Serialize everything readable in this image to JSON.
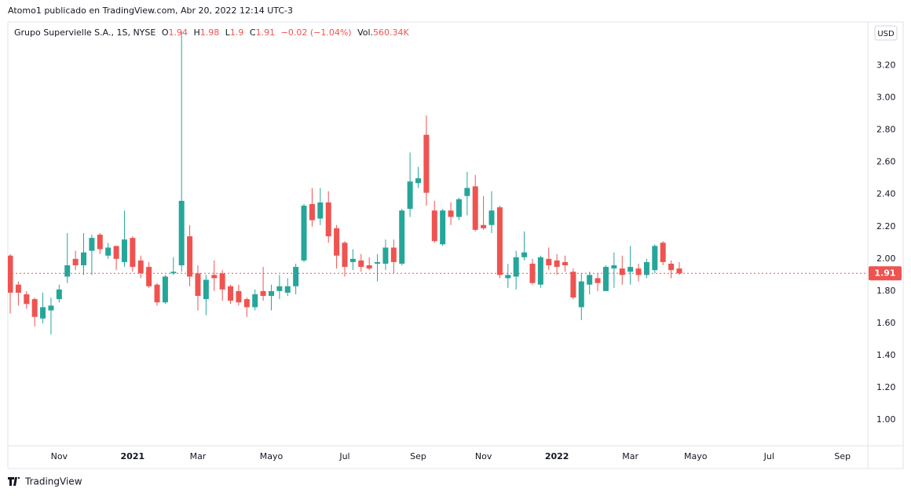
{
  "header": {
    "title": "Atomo1 publicado en TradingView.com, Abr 20, 2022 12:14 UTC-3"
  },
  "chart_data": {
    "type": "candlestick",
    "symbol": "Grupo Supervielle S.A., 1S, NYSE",
    "legend_labels": {
      "open": "O",
      "high": "H",
      "low": "L",
      "close": "C",
      "volume": "Vol."
    },
    "change": "−0.02 (−1.04%)",
    "volume": "560.34K",
    "currency": "USD",
    "categories": [
      null,
      null,
      null,
      null,
      null,
      null,
      "Nov",
      null,
      null,
      null,
      null,
      null,
      null,
      null,
      null,
      "2021",
      null,
      null,
      null,
      null,
      null,
      null,
      null,
      "Mar",
      null,
      null,
      null,
      null,
      null,
      null,
      null,
      null,
      "Mayo",
      null,
      null,
      null,
      null,
      null,
      null,
      null,
      null,
      "Jul",
      null,
      null,
      null,
      null,
      null,
      null,
      null,
      null,
      "Sep",
      null,
      null,
      null,
      null,
      null,
      null,
      null,
      "Nov",
      null,
      null,
      null,
      null,
      null,
      null,
      null,
      null,
      "2022",
      null,
      null,
      null,
      null,
      null,
      null,
      null,
      null,
      "Mar",
      null,
      null,
      null,
      null,
      null,
      null,
      null,
      "Mayo",
      null,
      null,
      null,
      null,
      null,
      null,
      null,
      null,
      "Jul",
      null,
      null,
      null,
      null,
      null,
      null,
      null,
      null,
      "Sep",
      null,
      null
    ],
    "open": [
      2.02,
      1.84,
      1.78,
      1.75,
      1.63,
      1.68,
      1.75,
      1.89,
      2.0,
      1.96,
      2.05,
      2.15,
      2.02,
      2.08,
      1.98,
      2.13,
      1.99,
      1.95,
      1.84,
      1.73,
      1.91,
      1.96,
      2.14,
      1.91,
      1.75,
      1.9,
      1.91,
      1.83,
      1.8,
      1.75,
      1.7,
      1.8,
      1.77,
      1.8,
      1.79,
      1.83,
      1.99,
      2.34,
      2.25,
      2.35,
      2.19,
      2.1,
      1.98,
      1.99,
      1.96,
      1.97,
      1.97,
      2.07,
      1.97,
      2.31,
      2.47,
      2.77,
      2.3,
      2.09,
      2.3,
      2.26,
      2.39,
      2.45,
      2.21,
      2.21,
      2.32,
      1.88,
      1.89,
      2.01,
      1.97,
      1.84,
      2.0,
      1.99,
      1.98,
      1.92,
      1.7,
      1.84,
      1.88,
      1.8,
      1.94,
      1.94,
      1.92,
      1.94,
      1.9,
      1.93,
      2.1,
      1.97,
      1.94,
      null,
      null,
      null,
      null,
      null,
      null,
      null,
      null,
      null,
      null,
      null,
      null,
      null,
      null,
      null,
      null,
      null,
      null,
      null,
      null,
      null,
      null
    ],
    "high": [
      2.03,
      1.86,
      1.8,
      1.76,
      1.79,
      1.76,
      1.84,
      2.16,
      2.05,
      2.16,
      2.15,
      2.16,
      2.1,
      2.08,
      2.3,
      2.14,
      2.02,
      1.98,
      1.85,
      1.9,
      2.01,
      3.41,
      2.21,
      1.96,
      1.9,
      1.99,
      1.93,
      1.84,
      1.84,
      1.76,
      1.81,
      1.95,
      1.84,
      1.9,
      1.88,
      1.97,
      2.34,
      2.44,
      2.44,
      2.42,
      2.21,
      2.11,
      2.06,
      2.03,
      2.01,
      2.03,
      2.12,
      2.12,
      2.31,
      2.66,
      2.57,
      2.89,
      2.36,
      2.31,
      2.35,
      2.38,
      2.54,
      2.52,
      2.39,
      2.42,
      2.33,
      1.97,
      2.05,
      2.17,
      2.0,
      2.02,
      2.07,
      2.03,
      2.02,
      1.94,
      1.91,
      1.92,
      1.91,
      1.96,
      2.04,
      2.02,
      2.08,
      1.97,
      2.0,
      2.09,
      2.11,
      1.99,
      1.98,
      null,
      null,
      null,
      null,
      null,
      null,
      null,
      null,
      null,
      null,
      null,
      null,
      null,
      null,
      null,
      null,
      null,
      null,
      null,
      null,
      null,
      null
    ],
    "low": [
      1.66,
      1.71,
      1.69,
      1.58,
      1.6,
      1.53,
      1.73,
      1.85,
      1.93,
      1.9,
      1.9,
      2.03,
      2.0,
      1.93,
      1.95,
      1.92,
      1.88,
      1.82,
      1.71,
      1.72,
      1.9,
      1.92,
      1.83,
      1.68,
      1.65,
      1.8,
      1.74,
      1.72,
      1.71,
      1.64,
      1.68,
      1.74,
      1.68,
      1.75,
      1.77,
      1.78,
      1.98,
      2.2,
      2.21,
      2.1,
      1.94,
      1.89,
      1.93,
      1.92,
      1.93,
      1.86,
      1.93,
      1.91,
      1.96,
      2.26,
      2.44,
      2.33,
      2.1,
      2.08,
      2.21,
      2.24,
      2.27,
      2.17,
      2.18,
      2.16,
      1.88,
      1.82,
      1.81,
      1.99,
      1.84,
      1.82,
      1.93,
      1.9,
      1.92,
      1.75,
      1.62,
      1.78,
      1.8,
      1.8,
      1.82,
      1.84,
      1.84,
      1.86,
      1.88,
      1.91,
      1.96,
      1.88,
      1.9,
      null,
      null,
      null,
      null,
      null,
      null,
      null,
      null,
      null,
      null,
      null,
      null,
      null,
      null,
      null,
      null,
      null,
      null,
      null,
      null,
      null,
      null
    ],
    "close": [
      1.79,
      1.79,
      1.72,
      1.64,
      1.7,
      1.71,
      1.81,
      1.96,
      1.96,
      2.04,
      2.13,
      2.06,
      2.07,
      2.0,
      2.12,
      1.95,
      1.91,
      1.83,
      1.73,
      1.89,
      1.92,
      2.36,
      1.89,
      1.77,
      1.87,
      1.88,
      1.81,
      1.74,
      1.73,
      1.7,
      1.78,
      1.77,
      1.8,
      1.83,
      1.83,
      1.95,
      2.33,
      2.24,
      2.35,
      2.14,
      2.02,
      1.95,
      2.0,
      1.95,
      1.94,
      1.98,
      2.07,
      1.98,
      2.3,
      2.48,
      2.5,
      2.41,
      2.11,
      2.3,
      2.26,
      2.37,
      2.44,
      2.18,
      2.19,
      2.3,
      1.9,
      1.9,
      2.01,
      2.04,
      1.85,
      2.01,
      1.96,
      1.95,
      1.96,
      1.76,
      1.86,
      1.9,
      1.85,
      1.95,
      1.96,
      1.9,
      1.95,
      1.9,
      1.98,
      2.08,
      1.98,
      1.93,
      1.91,
      null,
      null,
      null,
      null,
      null,
      null,
      null,
      null,
      null,
      null,
      null,
      null,
      null,
      null,
      null,
      null,
      null,
      null,
      null,
      null,
      null,
      null
    ],
    "up_color": "#26a69a",
    "down_color": "#ef5350",
    "ylim": [
      0.84,
      3.47
    ],
    "yticks": [
      {
        "value": 1,
        "label": "1.00"
      },
      {
        "value": 1.2,
        "label": "1.20"
      },
      {
        "value": 1.4,
        "label": "1.40"
      },
      {
        "value": 1.6,
        "label": "1.60"
      },
      {
        "value": 1.8,
        "label": "1.80"
      },
      {
        "value": 2,
        "label": "2.00"
      },
      {
        "value": 2.2,
        "label": "2.20"
      },
      {
        "value": 2.4,
        "label": "2.40"
      },
      {
        "value": 2.6,
        "label": "2.60"
      },
      {
        "value": 2.8,
        "label": "2.80"
      },
      {
        "value": 3,
        "label": "3.00"
      },
      {
        "value": 3.2,
        "label": "3.20"
      }
    ],
    "last_price_line": true
  },
  "footer": {
    "brand": "TradingView"
  }
}
